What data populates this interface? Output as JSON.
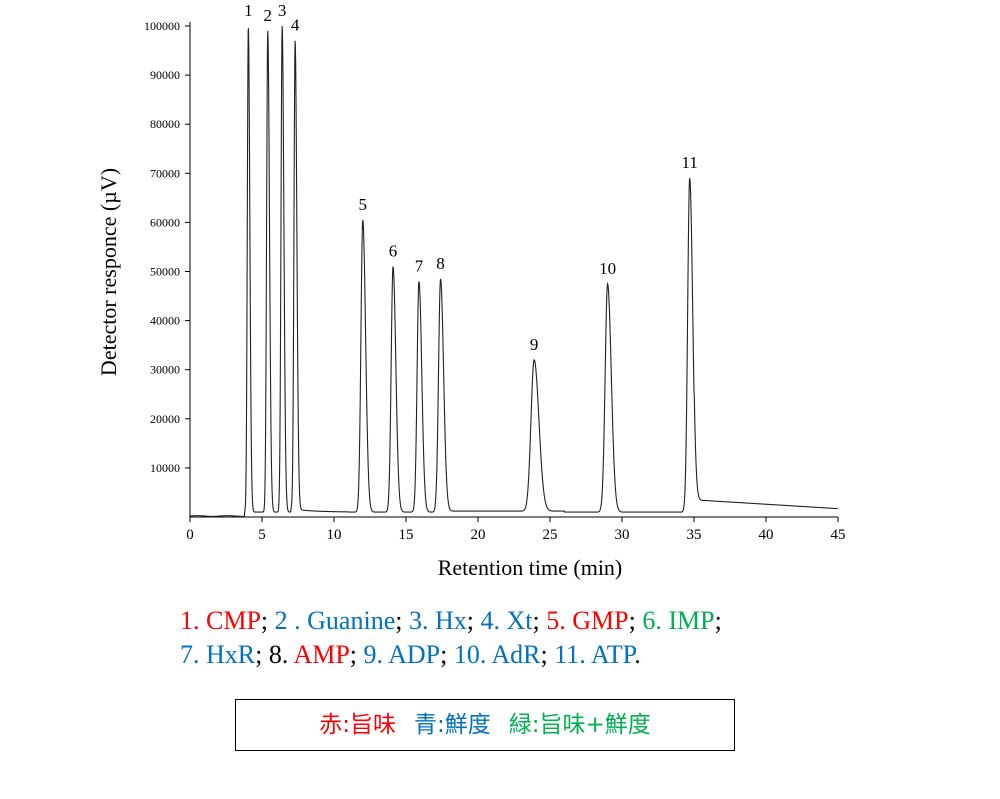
{
  "chart_data": {
    "type": "line",
    "xlabel": "Retention time (min)",
    "ylabel": "Detector responce (µV)",
    "xlim": [
      0,
      45
    ],
    "ylim": [
      0,
      100000
    ],
    "xticks": [
      "0",
      "5",
      "10",
      "15",
      "20",
      "25",
      "30",
      "35",
      "40",
      "45"
    ],
    "yticks": [
      "10000",
      "20000",
      "30000",
      "40000",
      "50000",
      "60000",
      "70000",
      "80000",
      "90000",
      "100000"
    ],
    "grid": false,
    "peaks": [
      {
        "label": "1",
        "x": 4.05,
        "y": 100000
      },
      {
        "label": "2",
        "x": 5.4,
        "y": 99000
      },
      {
        "label": "3",
        "x": 6.4,
        "y": 100000
      },
      {
        "label": "4",
        "x": 7.3,
        "y": 97000
      },
      {
        "label": "5",
        "x": 12.0,
        "y": 60500
      },
      {
        "label": "6",
        "x": 14.1,
        "y": 51000
      },
      {
        "label": "7",
        "x": 15.9,
        "y": 48000
      },
      {
        "label": "8",
        "x": 17.4,
        "y": 48500
      },
      {
        "label": "9",
        "x": 23.9,
        "y": 32000
      },
      {
        "label": "10",
        "x": 29.0,
        "y": 47500
      },
      {
        "label": "11",
        "x": 34.7,
        "y": 69000
      }
    ]
  },
  "legend_lines": [
    [
      {
        "text": "1. CMP",
        "color": "#ff0000"
      },
      {
        "text": "; ",
        "color": "#000000"
      },
      {
        "text": "2 . Guanine",
        "color": "#0070c0"
      },
      {
        "text": "; ",
        "color": "#000000"
      },
      {
        "text": "3. Hx",
        "color": "#0070c0"
      },
      {
        "text": "; ",
        "color": "#000000"
      },
      {
        "text": "4. Xt",
        "color": "#0070c0"
      },
      {
        "text": "; ",
        "color": "#000000"
      },
      {
        "text": "5. GMP",
        "color": "#ff0000"
      },
      {
        "text": "; ",
        "color": "#000000"
      },
      {
        "text": "6. IMP",
        "color": "#00b050"
      },
      {
        "text": ";",
        "color": "#000000"
      }
    ],
    [
      {
        "text": "7. HxR",
        "color": "#0070c0"
      },
      {
        "text": "; ",
        "color": "#000000"
      },
      {
        "text": "8. ",
        "color": "#000000"
      },
      {
        "text": "AMP",
        "color": "#ff0000"
      },
      {
        "text": "; ",
        "color": "#000000"
      },
      {
        "text": "9. ADP",
        "color": "#0070c0"
      },
      {
        "text": "; ",
        "color": "#000000"
      },
      {
        "text": "10. AdR",
        "color": "#0070c0"
      },
      {
        "text": "; ",
        "color": "#000000"
      },
      {
        "text": "11. ATP",
        "color": "#0070c0"
      },
      {
        "text": ".",
        "color": "#000000"
      }
    ]
  ],
  "key_box": [
    {
      "text": "赤:旨味",
      "color": "#ff0000"
    },
    {
      "text": "青:鮮度",
      "color": "#0070c0"
    },
    {
      "text": "緑:旨味+鮮度",
      "color": "#00b050"
    }
  ]
}
